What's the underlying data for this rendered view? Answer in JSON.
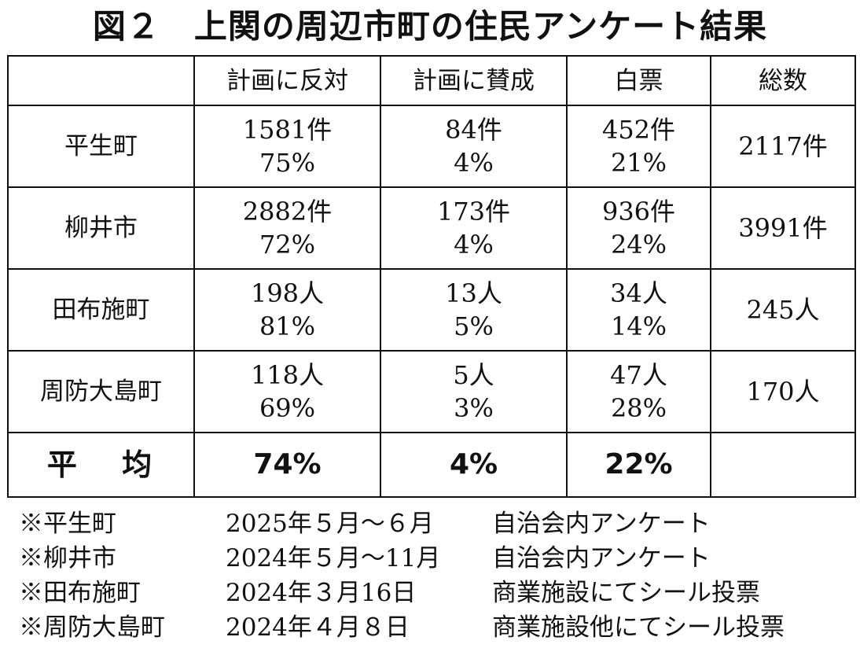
{
  "title": "図２　上関の周辺市町の住民アンケート結果",
  "table": {
    "headers": [
      "",
      "計画に反対",
      "計画に賛成",
      "白票",
      "総数"
    ],
    "rows": [
      {
        "name": "平生町",
        "oppose": [
          "1581件",
          "75%"
        ],
        "support": [
          "84件",
          "4%"
        ],
        "blank": [
          "452件",
          "21%"
        ],
        "total": "2117件"
      },
      {
        "name": "柳井市",
        "oppose": [
          "2882件",
          "72%"
        ],
        "support": [
          "173件",
          "4%"
        ],
        "blank": [
          "936件",
          "24%"
        ],
        "total": "3991件"
      },
      {
        "name": "田布施町",
        "oppose": [
          "198人",
          "81%"
        ],
        "support": [
          "13人",
          "5%"
        ],
        "blank": [
          "34人",
          "14%"
        ],
        "total": "245人"
      },
      {
        "name": "周防大島町",
        "oppose": [
          "118人",
          "69%"
        ],
        "support": [
          "5人",
          "3%"
        ],
        "blank": [
          "47人",
          "28%"
        ],
        "total": "170人"
      }
    ],
    "average": {
      "label": "平 均",
      "oppose": "74%",
      "support": "4%",
      "blank": "22%",
      "total": ""
    }
  },
  "notes": [
    {
      "place": "※平生町",
      "period": "2025年５月～６月",
      "method": "自治会内アンケート"
    },
    {
      "place": "※柳井市",
      "period": "2024年５月～11月",
      "method": "自治会内アンケート"
    },
    {
      "place": "※田布施町",
      "period": "2024年３月16日",
      "method": "商業施設にてシール投票"
    },
    {
      "place": "※周防大島町",
      "period": "2024年４月８日",
      "method": "商業施設他にてシール投票"
    }
  ]
}
